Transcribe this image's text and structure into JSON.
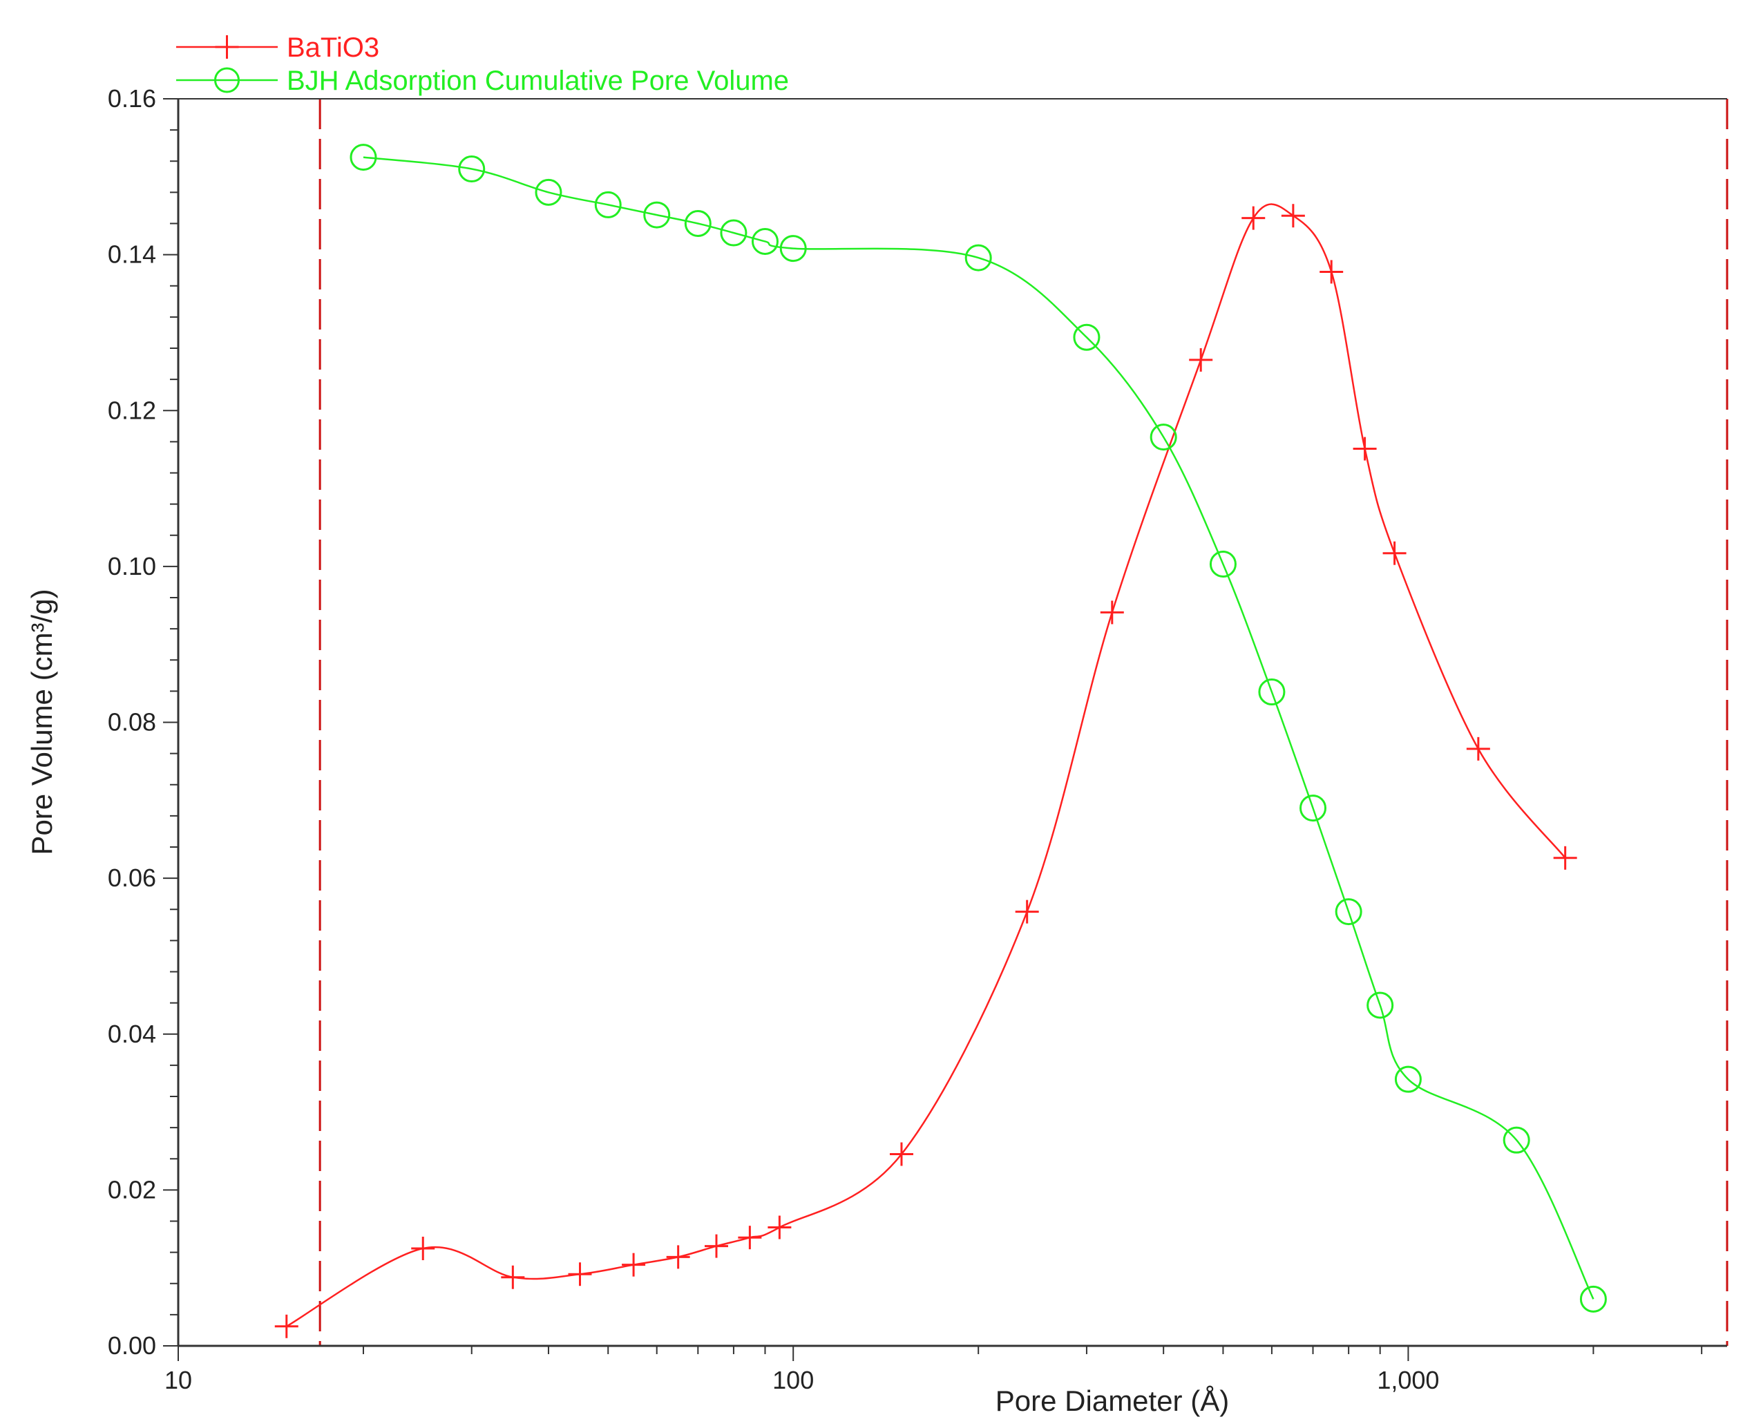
{
  "chart_data": {
    "type": "line",
    "xlabel": "Pore Diameter (Å)",
    "ylabel": "Pore Volume (cm³/g)",
    "xscale": "log",
    "xlim": [
      10,
      3300
    ],
    "ylim": [
      0,
      0.16
    ],
    "x_ticks": [
      {
        "value": 10,
        "label": "10"
      },
      {
        "value": 100,
        "label": "100"
      },
      {
        "value": 1000,
        "label": "1,000"
      }
    ],
    "y_ticks": [
      {
        "value": 0.0,
        "label": "0.00"
      },
      {
        "value": 0.02,
        "label": "0.02"
      },
      {
        "value": 0.04,
        "label": "0.04"
      },
      {
        "value": 0.06,
        "label": "0.06"
      },
      {
        "value": 0.08,
        "label": "0.08"
      },
      {
        "value": 0.1,
        "label": "0.10"
      },
      {
        "value": 0.12,
        "label": "0.12"
      },
      {
        "value": 0.14,
        "label": "0.14"
      },
      {
        "value": 0.16,
        "label": "0.16"
      }
    ],
    "reference_lines_x": [
      17,
      3300
    ],
    "legend_position": "top-left",
    "series": [
      {
        "name": "BaTiO3",
        "color": "#ff2020",
        "marker": "plus",
        "x": [
          15,
          25,
          35,
          45,
          55,
          65,
          75,
          85,
          95,
          150,
          240,
          330,
          460,
          560,
          650,
          750,
          850,
          950,
          1300,
          1800
        ],
        "y": [
          0.0025,
          0.0125,
          0.0088,
          0.0092,
          0.0104,
          0.0114,
          0.0128,
          0.0139,
          0.0152,
          0.0246,
          0.0557,
          0.0941,
          0.1265,
          0.1447,
          0.145,
          0.1378,
          0.1151,
          0.1017,
          0.0766,
          0.0626
        ]
      },
      {
        "name": "BJH Adsorption Cumulative Pore Volume",
        "color": "#22ee22",
        "marker": "circle",
        "x": [
          20,
          30,
          40,
          50,
          60,
          70,
          80,
          90,
          100,
          200,
          300,
          400,
          500,
          600,
          700,
          800,
          900,
          1000,
          1500,
          2000
        ],
        "y": [
          0.1525,
          0.151,
          0.148,
          0.1464,
          0.1451,
          0.144,
          0.1428,
          0.1417,
          0.1408,
          0.1396,
          0.1294,
          0.1166,
          0.1003,
          0.0839,
          0.069,
          0.0557,
          0.0437,
          0.0342,
          0.0264,
          0.006
        ]
      }
    ]
  }
}
